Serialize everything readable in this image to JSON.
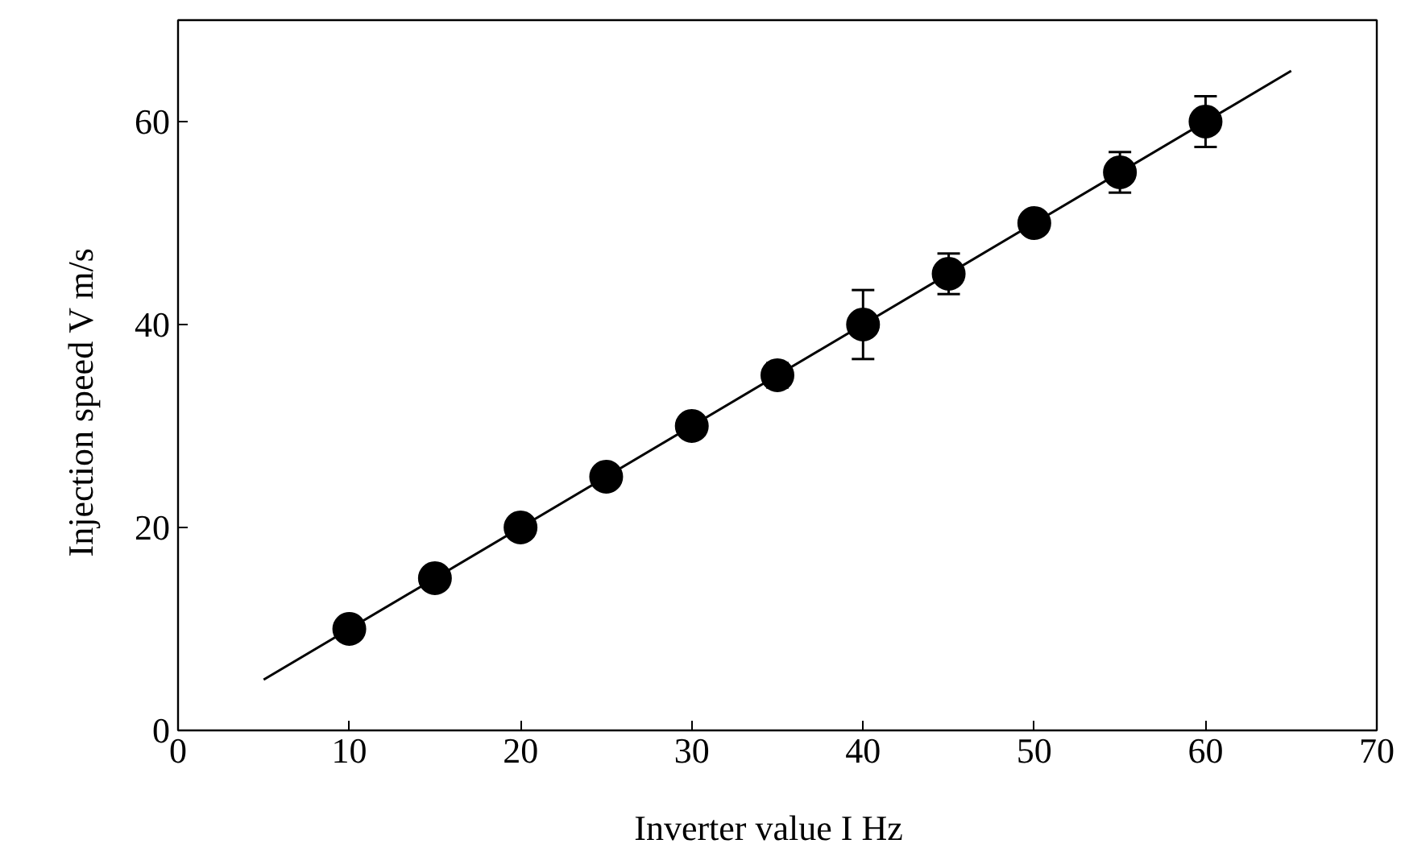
{
  "chart_data": {
    "type": "scatter",
    "xlabel": "Inverter value  I  Hz",
    "ylabel": "Injection speed    V    m/s",
    "xlim": [
      0,
      70
    ],
    "xticks": [
      0,
      10,
      20,
      30,
      40,
      50,
      60,
      70
    ],
    "ylim": [
      0,
      70
    ],
    "yticks": [
      0,
      20,
      40,
      60
    ],
    "grid": false,
    "series": [
      {
        "type": "line",
        "marker": "none",
        "color": "#000000",
        "x": [
          5,
          65
        ],
        "values": [
          5,
          65
        ]
      },
      {
        "marker": "circle",
        "color": "#000000",
        "x": [
          10,
          15,
          20,
          25,
          30,
          35,
          40,
          45,
          50,
          55,
          60
        ],
        "values": [
          10,
          15,
          20,
          25,
          30,
          35,
          40,
          45,
          50,
          55,
          60
        ],
        "errors": [
          null,
          null,
          null,
          null,
          null,
          1.2,
          3.4,
          2,
          null,
          2,
          2.5
        ]
      }
    ]
  }
}
